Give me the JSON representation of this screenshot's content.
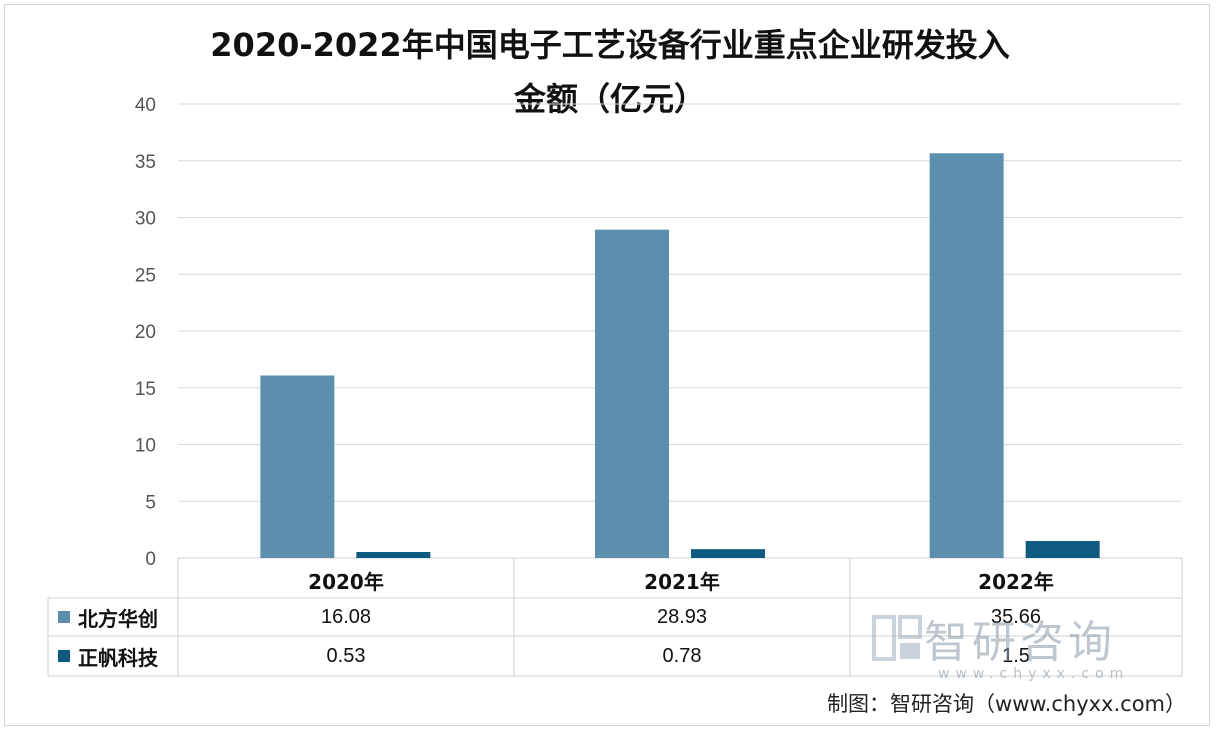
{
  "chart_data": {
    "type": "bar",
    "title_line1": "2020-2022年中国电子工艺设备行业重点企业研发投入",
    "title_line2": "金额（亿元）",
    "categories": [
      "2020年",
      "2021年",
      "2022年"
    ],
    "series": [
      {
        "name": "北方华创",
        "values": [
          16.08,
          28.93,
          35.66
        ],
        "value_labels": [
          "16.08",
          "28.93",
          "35.66"
        ],
        "color": "#5b8fad"
      },
      {
        "name": "正帆科技",
        "values": [
          0.53,
          0.78,
          1.5
        ],
        "value_labels": [
          "0.53",
          "0.78",
          "1.5"
        ],
        "color": "#0f5a80"
      }
    ],
    "ylim": [
      0,
      40
    ],
    "yticks": [
      "0",
      "5",
      "10",
      "15",
      "20",
      "25",
      "30",
      "35",
      "40"
    ],
    "grid": true,
    "legend": "data-table"
  },
  "watermark": {
    "logo_text": "智研咨询",
    "url_text": "www.chyxx.com"
  },
  "source": "制图：智研咨询（www.chyxx.com）"
}
